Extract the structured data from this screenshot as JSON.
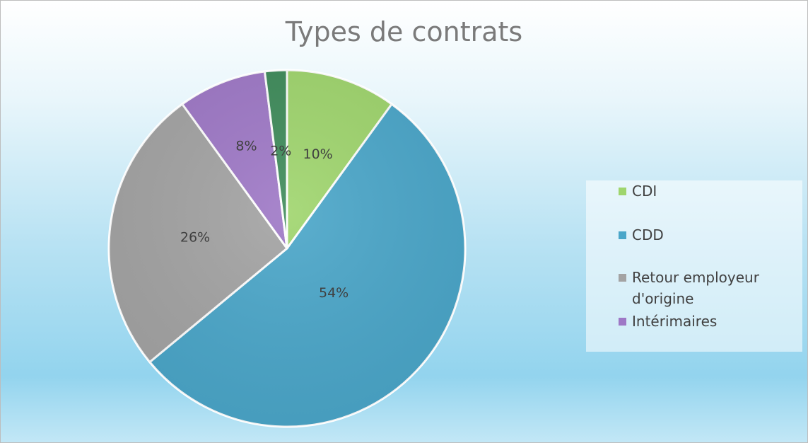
{
  "chart_data": {
    "type": "pie",
    "title": "Types de contrats",
    "categories": [
      "CDI",
      "CDD",
      "Retour employeur d'origine",
      "Intérimaires",
      ""
    ],
    "values": [
      10,
      54,
      26,
      8,
      2
    ],
    "data_labels": [
      "10%",
      "54%",
      "26%",
      "8%",
      "2%"
    ],
    "colors": [
      "#9fd56d",
      "#4aa6c9",
      "#a3a3a3",
      "#9e78c6",
      "#3e8b5a"
    ],
    "legend": {
      "position": "right",
      "entries": [
        "CDI",
        "CDD",
        "Retour employeur d'origine",
        "Intérimaires"
      ]
    },
    "start_angle": "top",
    "direction": "clockwise"
  }
}
